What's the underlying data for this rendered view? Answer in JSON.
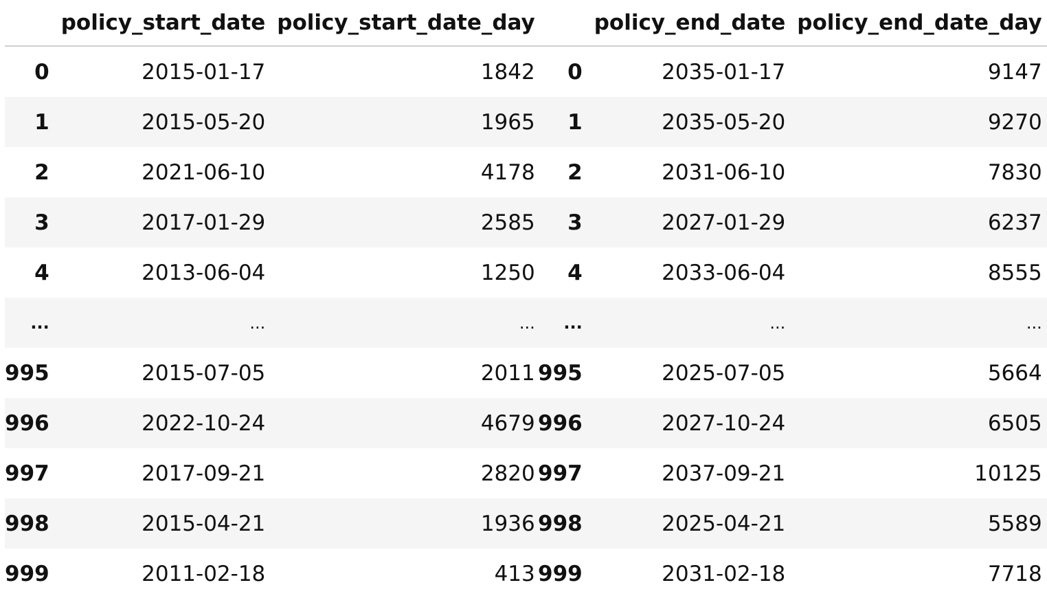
{
  "left_frame": {
    "columns": [
      "",
      "policy_start_date",
      "policy_start_date_day"
    ],
    "rows": [
      {
        "index": "0",
        "date": "2015-01-17",
        "day": "1842"
      },
      {
        "index": "1",
        "date": "2015-05-20",
        "day": "1965"
      },
      {
        "index": "2",
        "date": "2021-06-10",
        "day": "4178"
      },
      {
        "index": "3",
        "date": "2017-01-29",
        "day": "2585"
      },
      {
        "index": "4",
        "date": "2013-06-04",
        "day": "1250"
      },
      {
        "index": "...",
        "date": "...",
        "day": "..."
      },
      {
        "index": "995",
        "date": "2015-07-05",
        "day": "2011"
      },
      {
        "index": "996",
        "date": "2022-10-24",
        "day": "4679"
      },
      {
        "index": "997",
        "date": "2017-09-21",
        "day": "2820"
      },
      {
        "index": "998",
        "date": "2015-04-21",
        "day": "1936"
      },
      {
        "index": "999",
        "date": "2011-02-18",
        "day": "413"
      }
    ]
  },
  "right_frame": {
    "columns": [
      "",
      "policy_end_date",
      "policy_end_date_day"
    ],
    "rows": [
      {
        "index": "0",
        "date": "2035-01-17",
        "day": "9147"
      },
      {
        "index": "1",
        "date": "2035-05-20",
        "day": "9270"
      },
      {
        "index": "2",
        "date": "2031-06-10",
        "day": "7830"
      },
      {
        "index": "3",
        "date": "2027-01-29",
        "day": "6237"
      },
      {
        "index": "4",
        "date": "2033-06-04",
        "day": "8555"
      },
      {
        "index": "...",
        "date": "...",
        "day": "..."
      },
      {
        "index": "995",
        "date": "2025-07-05",
        "day": "5664"
      },
      {
        "index": "996",
        "date": "2027-10-24",
        "day": "6505"
      },
      {
        "index": "997",
        "date": "2037-09-21",
        "day": "10125"
      },
      {
        "index": "998",
        "date": "2025-04-21",
        "day": "5589"
      },
      {
        "index": "999",
        "date": "2031-02-18",
        "day": "7718"
      }
    ]
  }
}
